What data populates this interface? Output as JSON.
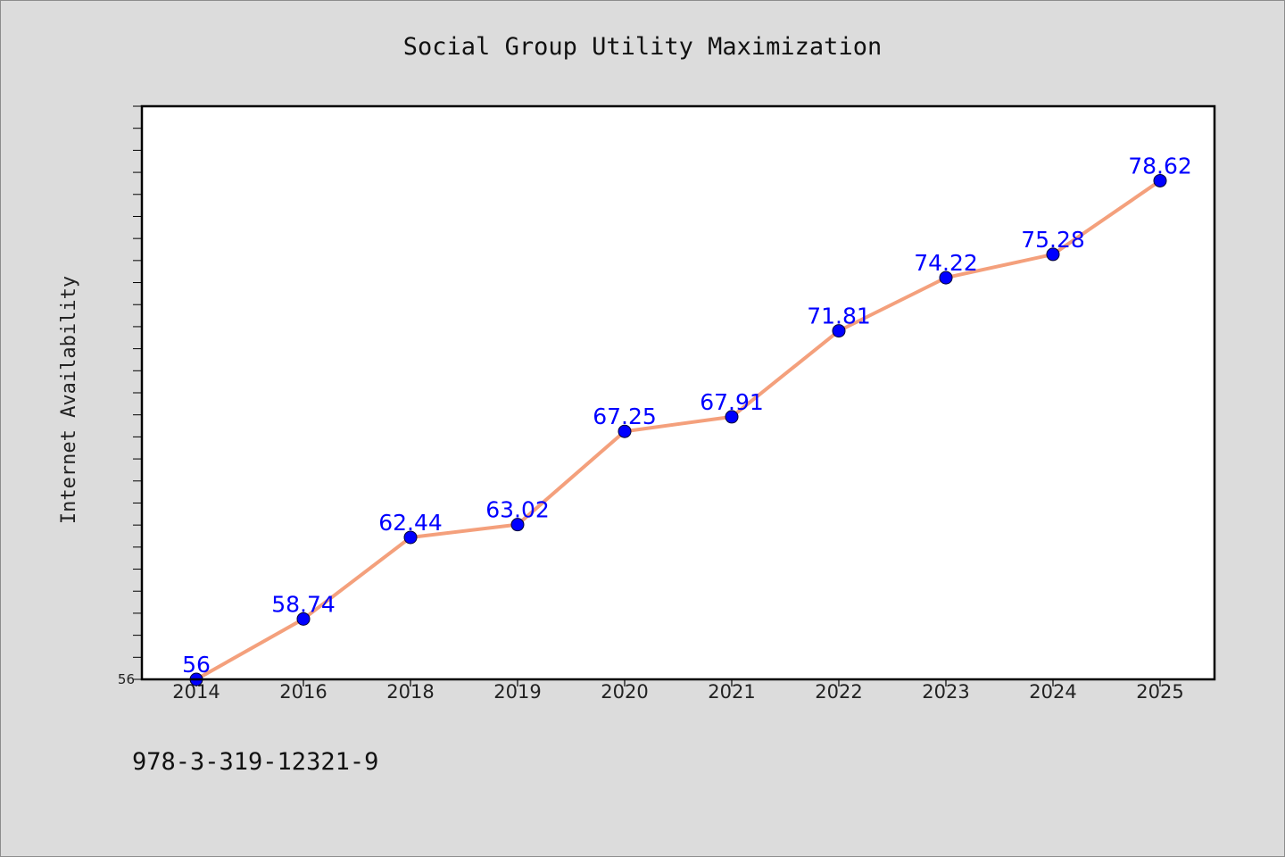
{
  "page": {
    "background": "#dcdcdc",
    "footer_text": "978-3-319-12321-9"
  },
  "chart_data": {
    "type": "line",
    "title": "Social Group Utility Maximization",
    "xlabel": "",
    "ylabel": "Internet Availability",
    "categories": [
      "2014",
      "2016",
      "2018",
      "2019",
      "2020",
      "2021",
      "2022",
      "2023",
      "2024",
      "2025"
    ],
    "series": [
      {
        "values": [
          56,
          58.74,
          62.44,
          63.02,
          67.25,
          67.91,
          71.81,
          74.22,
          75.28,
          78.62
        ],
        "data_labels": [
          "56",
          "58.74",
          "62.44",
          "63.02",
          "67.25",
          "67.91",
          "71.81",
          "74.22",
          "75.28",
          "78.62"
        ],
        "line_color": "#f4a07c",
        "marker_color": "#0000ff"
      }
    ],
    "ylim": [
      56,
      82
    ],
    "yticks_labeled": [
      "56"
    ],
    "grid": false,
    "legend": "none",
    "plot_background": "#ffffff"
  }
}
